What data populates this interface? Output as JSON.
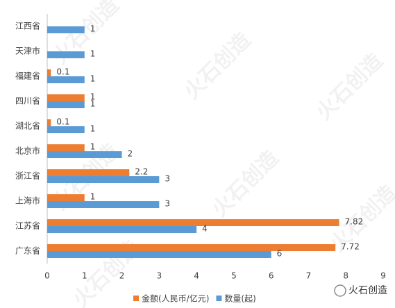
{
  "chart_data": {
    "type": "bar",
    "orientation": "horizontal",
    "categories": [
      "江西省",
      "天津市",
      "福建省",
      "四川省",
      "湖北省",
      "北京市",
      "浙江省",
      "上海市",
      "江苏省",
      "广东省"
    ],
    "series": [
      {
        "name": "金额(人民币/亿元)",
        "color": "#ed7d31",
        "values": [
          null,
          null,
          0.1,
          1,
          0.1,
          1,
          2.2,
          1,
          7.82,
          7.72
        ]
      },
      {
        "name": "数量(起)",
        "color": "#5b9bd5",
        "values": [
          1,
          1,
          1,
          1,
          1,
          2,
          3,
          3,
          4,
          6
        ]
      }
    ],
    "xlim": [
      0,
      9
    ],
    "xticks": [
      0,
      1,
      2,
      3,
      4,
      5,
      6,
      7,
      8,
      9
    ],
    "grid": false,
    "legend": "bottom",
    "watermark": "火石创造"
  }
}
